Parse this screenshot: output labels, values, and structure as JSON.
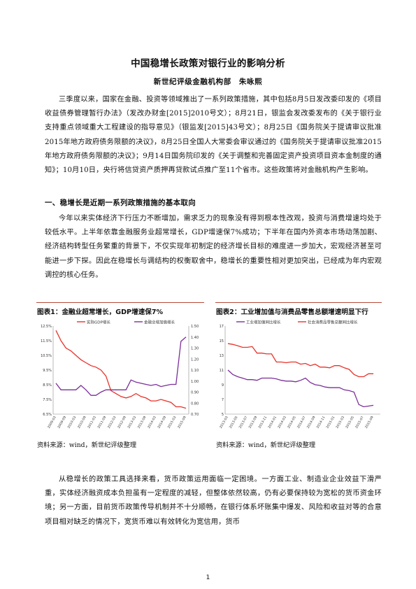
{
  "title": "中国稳增长政策对银行业的影响分析",
  "author": "新世纪评级金融机构部　朱咏熙",
  "intro_paragraph": "三季度以来，国家在金融、投资等领域推出了一系列政策措施，其中包括8月5日发改委印发的《项目收益债券管理暂行办法》（发改办财金[2015]2010号文）；8月21日，银监会发改委发布的《关于银行业支持重点领域重大工程建设的指导意见》（银监发[2015]43号文）；8月25日《国务院关于提请审议批准2015年地方政府债务限额的决议》，8月25日全国人大常委会审议通过的《国务院关于提请审议批准2015年地方政府债务限额的决议》；9月14日国务院印发的《关于调整和完善固定资产投资项目资本金制度的通知》；10月10日，央行将信贷资产质押再贷款试点推广至11个省市。这些政策将对金融机构产生影响。",
  "section1_heading": "一、稳增长是近期一系列政策措施的基本取向",
  "section1_paragraph": "今年以来实体经济下行压力不断增加，需求乏力的现象没有得到根本性改观，投资与消费增速均处于较低水平。上半年依靠金融服务业超常增长，GDP增速保7%成功；下半年在国内外资本市场动荡加剧、经济结构转型任务繁重的背景下，不仅实现年初制定的经济增长目标的难度进一步加大，宏观经济甚至可能进一步下探。因此在稳增长与调结构的权衡取舍中，稳增长的重要性相对更加突出，已经成为年内宏观调控的核心任务。",
  "figure1": {
    "title": "图表1：金融业超常增长，GDP增速保7%",
    "source": "资料来源：wind，新世纪评级整理",
    "legend_left": "实际GDP增长",
    "legend_right": "金融业增加值增长",
    "y_left_ticks": [
      "12.5%",
      "11.5%",
      "10.5%",
      "9.5%",
      "8.5%",
      "7.5%",
      "6.5%"
    ],
    "y_right_ticks": [
      "1.50",
      "1.40",
      "1.30",
      "1.20",
      "1.10",
      "1.00",
      "0.90",
      "0.80",
      "0.70"
    ],
    "x_ticks": [
      "2009-03",
      "2009-09",
      "2010-03",
      "2010-09",
      "2011-03",
      "2011-09",
      "2012-03",
      "2012-09",
      "2013-03",
      "2013-09",
      "2014-03",
      "2014-09",
      "2015-03",
      "2015-09"
    ],
    "colors": {
      "gdp": "#e8322a",
      "finance": "#7b2f9a"
    }
  },
  "figure2": {
    "title": "图表2：工业增加值与消费品零售总额增速明显下行",
    "source": "资料来源：wind，新世纪评级整理",
    "legend_left": "工业增加值同比增长",
    "legend_right": "社会消费品零售总额同比增长",
    "y_ticks": [
      "17",
      "15",
      "13",
      "11",
      "9",
      "7",
      "5"
    ],
    "x_ticks": [
      "2013-03",
      "2013-05",
      "2013-07",
      "2013-09",
      "2013-11",
      "2014-01",
      "2014-03",
      "2014-05",
      "2014-07",
      "2014-09",
      "2014-11",
      "2015-01",
      "2015-03",
      "2015-05",
      "2015-07",
      "2015-09"
    ],
    "colors": {
      "industry": "#7b2f9a",
      "retail": "#e8322a"
    }
  },
  "section2_paragraph": "从稳增长的政策工具选择来看，货币政策运用面临一定困境。一方面工业、制造业企业效益下滑严重，实体经济融资成本负担虽有一定程度的减轻，但整体依然较高，仍有必要保持较为宽松的货币资金环境；另一方面，目前货币政策传导机制并不十分顺畅，在银行体系坏账集中爆发、风险和收益对等的合意项目相对缺乏的情况下，宽货币难以有效转化为宽信用，货币",
  "page_number": "1",
  "chart_data": [
    {
      "type": "line",
      "title": "图表1：金融业超常增长，GDP增速保7%",
      "xlabel": "",
      "ylabel": "",
      "x": [
        "2009-03",
        "2009-06",
        "2009-09",
        "2009-12",
        "2010-03",
        "2010-06",
        "2010-09",
        "2010-12",
        "2011-03",
        "2011-06",
        "2011-09",
        "2011-12",
        "2012-03",
        "2012-06",
        "2012-09",
        "2012-12",
        "2013-03",
        "2013-06",
        "2013-09",
        "2013-12",
        "2014-03",
        "2014-06",
        "2014-09",
        "2014-12",
        "2015-03",
        "2015-06",
        "2015-09"
      ],
      "series": [
        {
          "name": "实际GDP增长",
          "axis": "left",
          "ylim": [
            6.5,
            12.5
          ],
          "values": [
            12.2,
            11.5,
            11.0,
            10.8,
            10.5,
            10.2,
            10.0,
            9.8,
            9.7,
            9.5,
            9.1,
            8.1,
            7.9,
            7.7,
            7.6,
            7.7,
            7.9,
            7.7,
            7.6,
            7.4,
            7.4,
            7.5,
            7.4,
            7.3,
            7.0,
            7.0,
            6.9
          ]
        },
        {
          "name": "金融业增加值增长",
          "axis": "right",
          "ylim": [
            0.7,
            1.5
          ],
          "values": [
            0.98,
            0.92,
            0.92,
            0.92,
            0.92,
            0.96,
            0.92,
            0.87,
            0.87,
            0.9,
            0.92,
            0.92,
            0.92,
            0.92,
            0.92,
            1.01,
            0.99,
            0.98,
            0.97,
            0.96,
            0.97,
            0.95,
            0.96,
            0.97,
            0.97,
            1.36,
            1.4
          ]
        }
      ],
      "y_left_ticks": [
        "12.5%",
        "11.5%",
        "10.5%",
        "9.5%",
        "8.5%",
        "7.5%",
        "6.5%"
      ],
      "y_right_ticks": [
        "1.50",
        "1.40",
        "1.30",
        "1.20",
        "1.10",
        "1.00",
        "0.90",
        "0.80",
        "0.70"
      ],
      "grid": false,
      "legend": "top"
    },
    {
      "type": "line",
      "title": "图表2：工业增加值与消费品零售总额增速明显下行",
      "xlabel": "",
      "ylabel": "",
      "ylim": [
        5,
        17
      ],
      "x": [
        "2013-03",
        "2013-04",
        "2013-05",
        "2013-06",
        "2013-07",
        "2013-08",
        "2013-09",
        "2013-10",
        "2013-11",
        "2013-12",
        "2014-01",
        "2014-02",
        "2014-03",
        "2014-04",
        "2014-05",
        "2014-06",
        "2014-07",
        "2014-08",
        "2014-09",
        "2014-10",
        "2014-11",
        "2014-12",
        "2015-01",
        "2015-02",
        "2015-03",
        "2015-04",
        "2015-05",
        "2015-06",
        "2015-07",
        "2015-08",
        "2015-09"
      ],
      "series": [
        {
          "name": "工业增加值同比增长",
          "values": [
            11.0,
            10.4,
            10.1,
            9.9,
            9.7,
            9.7,
            9.6,
            9.9,
            9.9,
            9.9,
            9.8,
            9.6,
            9.5,
            9.5,
            9.4,
            9.6,
            9.9,
            9.3,
            9.0,
            8.9,
            8.7,
            8.6,
            8.6,
            8.6,
            8.3,
            8.2,
            8.0,
            6.3,
            6.0,
            6.1,
            6.2
          ]
        },
        {
          "name": "社会消费品零售总额同比增长",
          "values": [
            14.6,
            14.5,
            14.3,
            14.1,
            14.1,
            14.2,
            13.3,
            13.3,
            13.2,
            13.2,
            12.1,
            12.1,
            12.0,
            12.1,
            12.1,
            11.8,
            11.9,
            11.6,
            11.8,
            11.4,
            11.4,
            11.3,
            11.6,
            11.6,
            11.3,
            11.1,
            10.4,
            10.1,
            10.1,
            10.5,
            10.5
          ]
        }
      ],
      "y_ticks": [
        "17",
        "15",
        "13",
        "11",
        "9",
        "7",
        "5"
      ],
      "grid": false,
      "legend": "top"
    }
  ]
}
